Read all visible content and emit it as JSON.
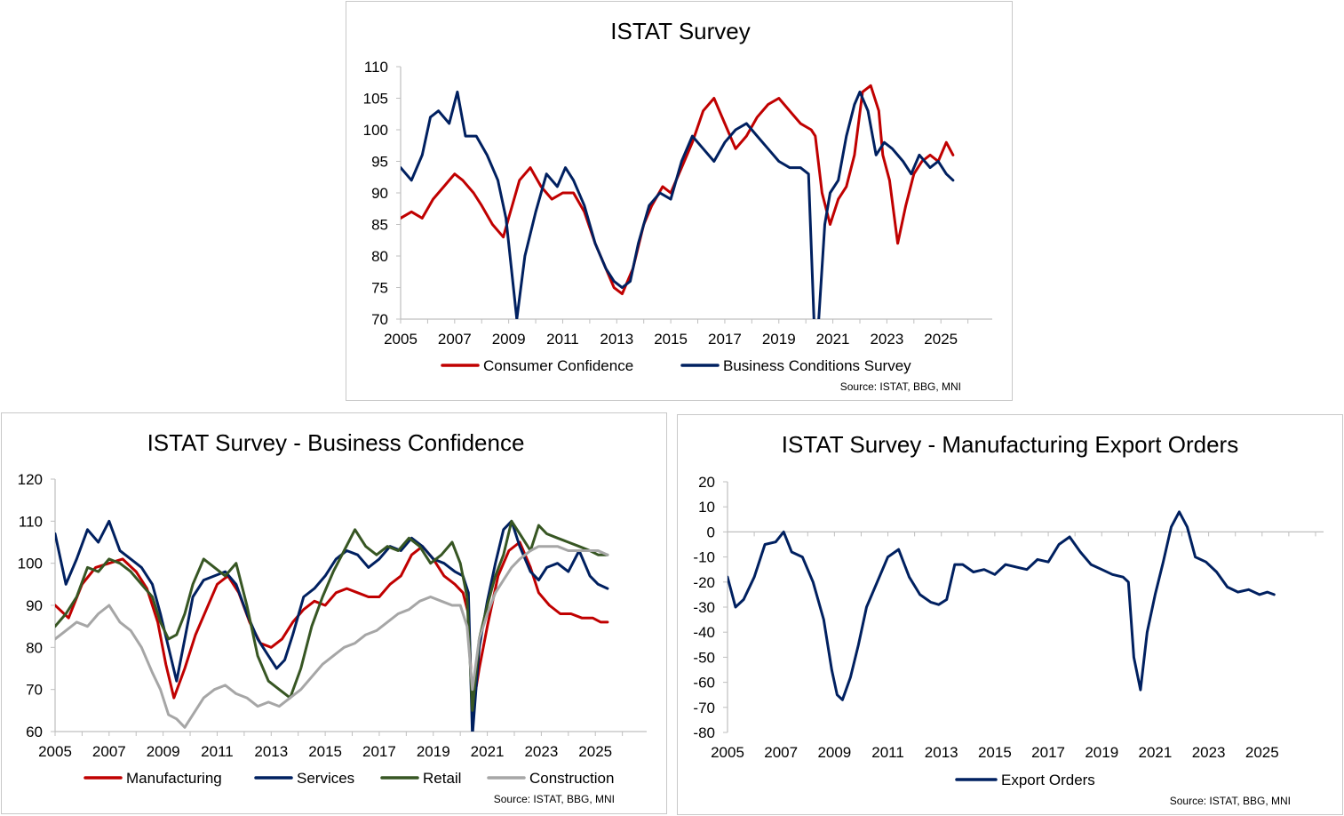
{
  "charts": {
    "top": {
      "title": "ISTAT Survey",
      "source": "Source: ISTAT, BBG, MNI",
      "xlim": [
        2005,
        2026.9
      ],
      "ylim": [
        70,
        110
      ],
      "xticks": [
        "2005",
        "2007",
        "2009",
        "2011",
        "2013",
        "2015",
        "2017",
        "2019",
        "2021",
        "2023",
        "2025"
      ],
      "yticks": [
        "70",
        "75",
        "80",
        "85",
        "90",
        "95",
        "100",
        "105",
        "110"
      ],
      "legend": [
        {
          "name": "Consumer Confidence",
          "color": "#c00000"
        },
        {
          "name": "Business Conditions Survey",
          "color": "#002060"
        }
      ]
    },
    "bl": {
      "title": "ISTAT Survey  - Business Confidence",
      "source": "Source: ISTAT, BBG, MNI",
      "xlim": [
        2005,
        2026.9
      ],
      "ylim": [
        60,
        120
      ],
      "xticks": [
        "2005",
        "2007",
        "2009",
        "2011",
        "2013",
        "2015",
        "2017",
        "2019",
        "2021",
        "2023",
        "2025"
      ],
      "yticks": [
        "60",
        "70",
        "80",
        "90",
        "100",
        "110",
        "120"
      ],
      "legend": [
        {
          "name": "Manufacturing",
          "color": "#c00000"
        },
        {
          "name": "Services",
          "color": "#002060"
        },
        {
          "name": "Retail",
          "color": "#375623"
        },
        {
          "name": "Construction",
          "color": "#a6a6a6"
        }
      ]
    },
    "br": {
      "title": "ISTAT Survey  - Manufacturing Export Orders",
      "source": "Source: ISTAT, BBG, MNI",
      "xlim": [
        2005,
        2027.3
      ],
      "ylim": [
        -80,
        20
      ],
      "xticks": [
        "2005",
        "2007",
        "2009",
        "2011",
        "2013",
        "2015",
        "2017",
        "2019",
        "2021",
        "2023",
        "2025"
      ],
      "yticks": [
        "-80",
        "-70",
        "-60",
        "-50",
        "-40",
        "-30",
        "-20",
        "-10",
        "0",
        "10",
        "20"
      ],
      "legend": [
        {
          "name": "Export Orders",
          "color": "#002060"
        }
      ]
    }
  },
  "chart_data": [
    {
      "type": "line",
      "title": "ISTAT Survey",
      "xlabel": "",
      "ylabel": "",
      "xlim": [
        2005,
        2026.9
      ],
      "ylim": [
        70,
        110
      ],
      "series": [
        {
          "name": "Consumer Confidence",
          "color": "#c00000",
          "x": [
            2005.0,
            2005.4,
            2005.8,
            2006.2,
            2006.6,
            2007.0,
            2007.3,
            2007.7,
            2008.0,
            2008.4,
            2008.8,
            2009.0,
            2009.4,
            2009.8,
            2010.2,
            2010.6,
            2011.0,
            2011.4,
            2011.8,
            2012.2,
            2012.6,
            2012.9,
            2013.2,
            2013.6,
            2014.0,
            2014.3,
            2014.7,
            2015.0,
            2015.4,
            2015.8,
            2016.2,
            2016.6,
            2017.0,
            2017.4,
            2017.8,
            2018.2,
            2018.6,
            2019.0,
            2019.4,
            2019.8,
            2020.2,
            2020.35,
            2020.6,
            2020.9,
            2021.2,
            2021.5,
            2021.8,
            2022.1,
            2022.4,
            2022.7,
            2022.85,
            2023.1,
            2023.4,
            2023.7,
            2024.0,
            2024.3,
            2024.6,
            2024.9,
            2025.2,
            2025.45
          ],
          "values": [
            86,
            87,
            86,
            89,
            91,
            93,
            92,
            90,
            88,
            85,
            83,
            86,
            92,
            94,
            91,
            89,
            90,
            90,
            87,
            82,
            78,
            75,
            74,
            78,
            85,
            88,
            91,
            90,
            94,
            98,
            103,
            105,
            101,
            97,
            99,
            102,
            104,
            105,
            103,
            101,
            100,
            99,
            90,
            85,
            89,
            91,
            96,
            106,
            107,
            103,
            96,
            92,
            82,
            88,
            93,
            95,
            96,
            95,
            98,
            96
          ]
        },
        {
          "name": "Business Conditions Survey",
          "color": "#002060",
          "x": [
            2005.0,
            2005.4,
            2005.8,
            2006.1,
            2006.4,
            2006.8,
            2007.1,
            2007.4,
            2007.8,
            2008.2,
            2008.6,
            2008.9,
            2009.1,
            2009.3,
            2009.6,
            2010.0,
            2010.4,
            2010.8,
            2011.1,
            2011.4,
            2011.8,
            2012.2,
            2012.6,
            2012.9,
            2013.2,
            2013.5,
            2013.8,
            2014.2,
            2014.6,
            2015.0,
            2015.4,
            2015.8,
            2016.2,
            2016.6,
            2017.0,
            2017.4,
            2017.8,
            2018.2,
            2018.6,
            2019.0,
            2019.4,
            2019.8,
            2020.1,
            2020.3,
            2020.45,
            2020.7,
            2020.9,
            2021.2,
            2021.5,
            2021.8,
            2022.0,
            2022.3,
            2022.6,
            2022.9,
            2023.2,
            2023.6,
            2023.9,
            2024.2,
            2024.6,
            2024.9,
            2025.2,
            2025.45
          ],
          "values": [
            94,
            92,
            96,
            102,
            103,
            101,
            106,
            99,
            99,
            96,
            92,
            86,
            78,
            70,
            80,
            87,
            93,
            91,
            94,
            92,
            88,
            82,
            78,
            76,
            75,
            76,
            82,
            88,
            90,
            89,
            95,
            99,
            97,
            95,
            98,
            100,
            101,
            99,
            97,
            95,
            94,
            94,
            93,
            70,
            68,
            85,
            90,
            92,
            99,
            104,
            106,
            103,
            96,
            98,
            97,
            95,
            93,
            96,
            94,
            95,
            93,
            92
          ]
        }
      ]
    },
    {
      "type": "line",
      "title": "ISTAT Survey  - Business Confidence",
      "xlabel": "",
      "ylabel": "",
      "xlim": [
        2005,
        2026.9
      ],
      "ylim": [
        60,
        120
      ],
      "series": [
        {
          "name": "Manufacturing",
          "color": "#c00000",
          "x": [
            2005.0,
            2005.5,
            2006.0,
            2006.5,
            2007.0,
            2007.5,
            2008.0,
            2008.4,
            2008.8,
            2009.1,
            2009.4,
            2009.8,
            2010.2,
            2010.6,
            2011.0,
            2011.4,
            2011.8,
            2012.2,
            2012.6,
            2013.0,
            2013.4,
            2013.8,
            2014.2,
            2014.6,
            2015.0,
            2015.4,
            2015.8,
            2016.2,
            2016.6,
            2017.0,
            2017.4,
            2017.8,
            2018.2,
            2018.6,
            2019.0,
            2019.4,
            2019.8,
            2020.1,
            2020.3,
            2020.45,
            2020.7,
            2021.0,
            2021.4,
            2021.8,
            2022.2,
            2022.6,
            2022.9,
            2023.3,
            2023.7,
            2024.1,
            2024.5,
            2024.9,
            2025.2,
            2025.45
          ],
          "values": [
            90,
            87,
            95,
            99,
            100,
            101,
            98,
            94,
            86,
            76,
            68,
            75,
            83,
            89,
            95,
            97,
            93,
            86,
            81,
            80,
            82,
            86,
            89,
            91,
            90,
            93,
            94,
            93,
            92,
            92,
            95,
            97,
            102,
            104,
            101,
            97,
            95,
            93,
            88,
            65,
            75,
            85,
            97,
            103,
            105,
            99,
            93,
            90,
            88,
            88,
            87,
            87,
            86,
            86
          ]
        },
        {
          "name": "Services",
          "color": "#002060",
          "x": [
            2005.0,
            2005.4,
            2005.8,
            2006.2,
            2006.6,
            2007.0,
            2007.4,
            2007.8,
            2008.2,
            2008.6,
            2008.9,
            2009.2,
            2009.5,
            2009.8,
            2010.1,
            2010.5,
            2010.9,
            2011.3,
            2011.7,
            2012.1,
            2012.5,
            2012.9,
            2013.2,
            2013.5,
            2013.8,
            2014.2,
            2014.6,
            2015.0,
            2015.4,
            2015.8,
            2016.2,
            2016.6,
            2017.0,
            2017.4,
            2017.8,
            2018.2,
            2018.6,
            2019.0,
            2019.4,
            2019.8,
            2020.1,
            2020.3,
            2020.45,
            2020.7,
            2021.0,
            2021.3,
            2021.6,
            2021.9,
            2022.2,
            2022.6,
            2022.9,
            2023.2,
            2023.6,
            2024.0,
            2024.4,
            2024.8,
            2025.1,
            2025.45
          ],
          "values": [
            107,
            95,
            101,
            108,
            105,
            110,
            103,
            101,
            99,
            95,
            88,
            80,
            72,
            82,
            92,
            96,
            97,
            98,
            95,
            88,
            82,
            78,
            75,
            77,
            83,
            92,
            94,
            97,
            101,
            103,
            102,
            99,
            101,
            104,
            103,
            106,
            104,
            101,
            100,
            98,
            97,
            93,
            59,
            80,
            91,
            100,
            108,
            110,
            104,
            98,
            96,
            99,
            100,
            98,
            103,
            97,
            95,
            94
          ]
        },
        {
          "name": "Retail",
          "color": "#375623",
          "x": [
            2005.0,
            2005.4,
            2005.8,
            2006.2,
            2006.6,
            2007.0,
            2007.4,
            2007.8,
            2008.2,
            2008.6,
            2008.9,
            2009.2,
            2009.5,
            2009.8,
            2010.1,
            2010.5,
            2010.9,
            2011.3,
            2011.7,
            2012.1,
            2012.5,
            2012.9,
            2013.3,
            2013.7,
            2014.1,
            2014.5,
            2014.9,
            2015.3,
            2015.7,
            2016.1,
            2016.5,
            2016.9,
            2017.3,
            2017.7,
            2018.1,
            2018.5,
            2018.9,
            2019.3,
            2019.7,
            2020.0,
            2020.25,
            2020.45,
            2020.7,
            2021.0,
            2021.3,
            2021.6,
            2021.9,
            2022.2,
            2022.6,
            2022.9,
            2023.2,
            2023.6,
            2024.0,
            2024.4,
            2024.8,
            2025.1,
            2025.45
          ],
          "values": [
            85,
            88,
            92,
            99,
            98,
            101,
            100,
            98,
            95,
            92,
            86,
            82,
            83,
            88,
            95,
            101,
            99,
            97,
            100,
            90,
            78,
            72,
            70,
            68,
            75,
            85,
            92,
            98,
            103,
            108,
            104,
            102,
            104,
            103,
            106,
            104,
            100,
            102,
            105,
            100,
            92,
            65,
            82,
            90,
            97,
            102,
            110,
            107,
            103,
            109,
            107,
            106,
            105,
            104,
            103,
            102,
            102
          ]
        },
        {
          "name": "Construction",
          "color": "#a6a6a6",
          "x": [
            2005.0,
            2005.4,
            2005.8,
            2006.2,
            2006.6,
            2007.0,
            2007.4,
            2007.8,
            2008.2,
            2008.6,
            2008.9,
            2009.2,
            2009.5,
            2009.8,
            2010.1,
            2010.5,
            2010.9,
            2011.3,
            2011.7,
            2012.1,
            2012.5,
            2012.9,
            2013.3,
            2013.7,
            2014.1,
            2014.5,
            2014.9,
            2015.3,
            2015.7,
            2016.1,
            2016.5,
            2016.9,
            2017.3,
            2017.7,
            2018.1,
            2018.5,
            2018.9,
            2019.3,
            2019.7,
            2020.0,
            2020.25,
            2020.45,
            2020.7,
            2021.0,
            2021.3,
            2021.6,
            2021.9,
            2022.2,
            2022.6,
            2022.9,
            2023.2,
            2023.6,
            2024.0,
            2024.4,
            2024.8,
            2025.1,
            2025.45
          ],
          "values": [
            82,
            84,
            86,
            85,
            88,
            90,
            86,
            84,
            80,
            74,
            70,
            64,
            63,
            61,
            64,
            68,
            70,
            71,
            69,
            68,
            66,
            67,
            66,
            68,
            70,
            73,
            76,
            78,
            80,
            81,
            83,
            84,
            86,
            88,
            89,
            91,
            92,
            91,
            90,
            90,
            85,
            70,
            82,
            88,
            93,
            96,
            99,
            101,
            103,
            104,
            104,
            104,
            103,
            103,
            103,
            103,
            102
          ]
        }
      ]
    },
    {
      "type": "line",
      "title": "ISTAT Survey  - Manufacturing Export Orders",
      "xlabel": "",
      "ylabel": "",
      "xlim": [
        2005,
        2027.3
      ],
      "ylim": [
        -80,
        20
      ],
      "series": [
        {
          "name": "Export Orders",
          "color": "#002060",
          "x": [
            2005.0,
            2005.3,
            2005.6,
            2006.0,
            2006.4,
            2006.8,
            2007.1,
            2007.4,
            2007.8,
            2008.2,
            2008.6,
            2008.9,
            2009.1,
            2009.3,
            2009.6,
            2009.9,
            2010.2,
            2010.6,
            2011.0,
            2011.4,
            2011.8,
            2012.2,
            2012.6,
            2012.9,
            2013.2,
            2013.5,
            2013.8,
            2014.2,
            2014.6,
            2015.0,
            2015.4,
            2015.8,
            2016.2,
            2016.6,
            2017.0,
            2017.4,
            2017.8,
            2018.2,
            2018.6,
            2019.0,
            2019.4,
            2019.8,
            2020.0,
            2020.2,
            2020.45,
            2020.7,
            2021.0,
            2021.3,
            2021.6,
            2021.9,
            2022.2,
            2022.5,
            2022.9,
            2023.3,
            2023.7,
            2024.1,
            2024.5,
            2024.9,
            2025.2,
            2025.45
          ],
          "values": [
            -18,
            -30,
            -27,
            -18,
            -5,
            -4,
            0,
            -8,
            -10,
            -20,
            -35,
            -55,
            -65,
            -67,
            -58,
            -45,
            -30,
            -20,
            -10,
            -7,
            -18,
            -25,
            -28,
            -29,
            -27,
            -13,
            -13,
            -16,
            -15,
            -17,
            -13,
            -14,
            -15,
            -11,
            -12,
            -5,
            -2,
            -8,
            -13,
            -15,
            -17,
            -18,
            -20,
            -50,
            -63,
            -40,
            -25,
            -12,
            2,
            8,
            2,
            -10,
            -12,
            -16,
            -22,
            -24,
            -23,
            -25,
            -24,
            -25
          ]
        }
      ]
    }
  ]
}
